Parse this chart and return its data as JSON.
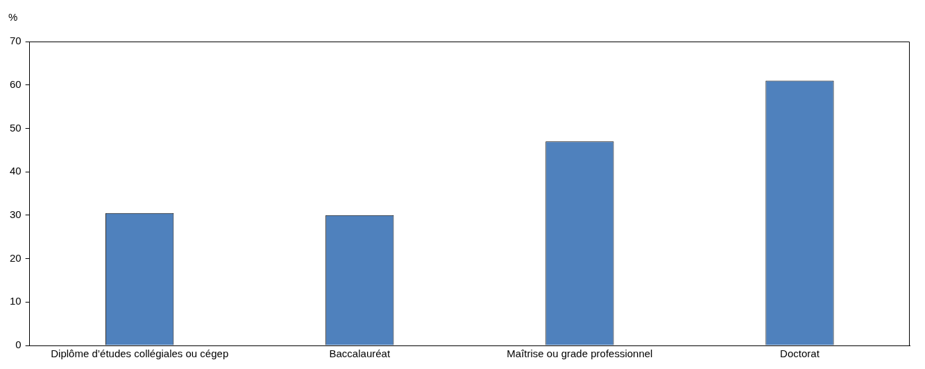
{
  "chart_data": {
    "type": "bar",
    "ylabel": "%",
    "categories": [
      "Diplôme d’études collégiales ou cégep",
      "Baccalauréat",
      "Maîtrise ou grade professionnel",
      "Doctorat"
    ],
    "values": [
      30.5,
      30,
      47,
      61
    ],
    "color": "#4f81bd",
    "ylim": [
      0,
      70
    ],
    "yticks": [
      0,
      10,
      20,
      30,
      40,
      50,
      60,
      70
    ],
    "grid": false,
    "legend": false
  }
}
